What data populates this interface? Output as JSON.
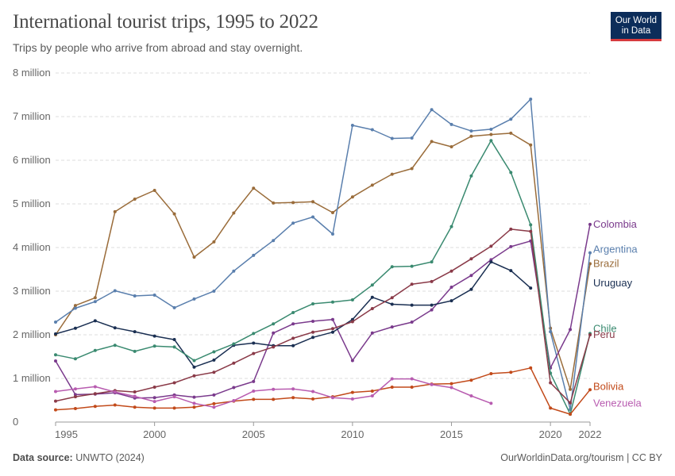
{
  "header": {
    "title": "International tourist trips, 1995 to 2022",
    "subtitle": "Trips by people who arrive from abroad and stay overnight."
  },
  "logo": {
    "line1": "Our World",
    "line2": "in Data"
  },
  "footer": {
    "source_label": "Data source:",
    "source_value": "UNWTO (2024)",
    "right": "OurWorldinData.org/tourism | CC BY"
  },
  "chart_data": {
    "type": "line",
    "title": "International tourist trips, 1995 to 2022",
    "xlim": [
      1995,
      2022
    ],
    "ylim": [
      0,
      8000000
    ],
    "y_ticks": [
      0,
      1000000,
      2000000,
      3000000,
      4000000,
      5000000,
      6000000,
      7000000,
      8000000
    ],
    "y_tick_labels": [
      "0",
      "1 million",
      "2 million",
      "3 million",
      "4 million",
      "5 million",
      "6 million",
      "7 million",
      "8 million"
    ],
    "x_ticks": [
      1995,
      2000,
      2005,
      2010,
      2015,
      2020,
      2022
    ],
    "x_tick_labels": [
      "1995",
      "2000",
      "2005",
      "2010",
      "2015",
      "2020",
      "2022"
    ],
    "grid": "horizontal-dashed",
    "legend": "right-end-labels",
    "series": [
      {
        "name": "Brazil",
        "color": "#9a6c3a",
        "x": [
          1995,
          1996,
          1997,
          1998,
          1999,
          2000,
          2001,
          2002,
          2003,
          2004,
          2005,
          2006,
          2007,
          2008,
          2009,
          2010,
          2011,
          2012,
          2013,
          2014,
          2015,
          2016,
          2017,
          2018,
          2019,
          2020,
          2021,
          2022
        ],
        "y": [
          2000000,
          2670000,
          2850000,
          4820000,
          5110000,
          5310000,
          4770000,
          3780000,
          4130000,
          4790000,
          5360000,
          5020000,
          5030000,
          5050000,
          4800000,
          5160000,
          5430000,
          5680000,
          5810000,
          6430000,
          6310000,
          6550000,
          6590000,
          6620000,
          6350000,
          2150000,
          750000,
          3630000
        ]
      },
      {
        "name": "Argentina",
        "color": "#5a7fad",
        "x": [
          1995,
          1996,
          1997,
          1998,
          1999,
          2000,
          2001,
          2002,
          2003,
          2004,
          2005,
          2006,
          2007,
          2008,
          2009,
          2010,
          2011,
          2012,
          2013,
          2014,
          2015,
          2016,
          2017,
          2018,
          2019,
          2020,
          2021,
          2022
        ],
        "y": [
          2290000,
          2610000,
          2760000,
          3010000,
          2890000,
          2910000,
          2620000,
          2820000,
          3000000,
          3460000,
          3820000,
          4160000,
          4560000,
          4700000,
          4310000,
          6800000,
          6700000,
          6500000,
          6510000,
          7160000,
          6820000,
          6670000,
          6710000,
          6940000,
          7400000,
          2070000,
          290000,
          3880000
        ]
      },
      {
        "name": "Colombia",
        "color": "#7a3a8c",
        "x": [
          1995,
          1996,
          1997,
          1998,
          1999,
          2000,
          2001,
          2002,
          2003,
          2004,
          2005,
          2006,
          2007,
          2008,
          2009,
          2010,
          2011,
          2012,
          2013,
          2014,
          2015,
          2016,
          2017,
          2018,
          2019,
          2020,
          2021,
          2022
        ],
        "y": [
          1400000,
          630000,
          640000,
          670000,
          550000,
          560000,
          620000,
          570000,
          620000,
          790000,
          930000,
          2040000,
          2250000,
          2310000,
          2350000,
          1410000,
          2040000,
          2180000,
          2290000,
          2570000,
          3090000,
          3360000,
          3720000,
          4020000,
          4150000,
          1240000,
          2120000,
          4530000
        ]
      },
      {
        "name": "Uruguay",
        "color": "#1a2f52",
        "x": [
          1995,
          1996,
          1997,
          1998,
          1999,
          2000,
          2001,
          2002,
          2003,
          2004,
          2005,
          2006,
          2007,
          2008,
          2009,
          2010,
          2011,
          2012,
          2013,
          2014,
          2015,
          2016,
          2017,
          2018,
          2019
        ],
        "y": [
          2020000,
          2150000,
          2320000,
          2160000,
          2070000,
          1970000,
          1890000,
          1260000,
          1420000,
          1760000,
          1810000,
          1750000,
          1750000,
          1940000,
          2060000,
          2350000,
          2860000,
          2700000,
          2680000,
          2680000,
          2780000,
          3040000,
          3670000,
          3470000,
          3070000
        ]
      },
      {
        "name": "Chile",
        "color": "#3a8a70",
        "x": [
          1995,
          1996,
          1997,
          1998,
          1999,
          2000,
          2001,
          2002,
          2003,
          2004,
          2005,
          2006,
          2007,
          2008,
          2009,
          2010,
          2011,
          2012,
          2013,
          2014,
          2015,
          2016,
          2017,
          2018,
          2019,
          2020,
          2021,
          2022
        ],
        "y": [
          1540000,
          1450000,
          1640000,
          1760000,
          1620000,
          1740000,
          1720000,
          1410000,
          1610000,
          1790000,
          2030000,
          2250000,
          2510000,
          2710000,
          2750000,
          2800000,
          3140000,
          3560000,
          3570000,
          3670000,
          4480000,
          5640000,
          6450000,
          5720000,
          4520000,
          1120000,
          180000,
          2030000
        ]
      },
      {
        "name": "Peru",
        "color": "#8a3a48",
        "x": [
          1995,
          1996,
          1997,
          1998,
          1999,
          2000,
          2001,
          2002,
          2003,
          2004,
          2005,
          2006,
          2007,
          2008,
          2009,
          2010,
          2011,
          2012,
          2013,
          2014,
          2015,
          2016,
          2017,
          2018,
          2019,
          2020,
          2021,
          2022
        ],
        "y": [
          480000,
          580000,
          650000,
          720000,
          690000,
          800000,
          900000,
          1060000,
          1140000,
          1350000,
          1570000,
          1720000,
          1920000,
          2060000,
          2140000,
          2300000,
          2600000,
          2850000,
          3160000,
          3220000,
          3460000,
          3740000,
          4030000,
          4420000,
          4370000,
          900000,
          440000,
          2000000
        ]
      },
      {
        "name": "Bolivia",
        "color": "#c24a1a",
        "x": [
          1995,
          1996,
          1997,
          1998,
          1999,
          2000,
          2001,
          2002,
          2003,
          2004,
          2005,
          2006,
          2007,
          2008,
          2009,
          2010,
          2011,
          2012,
          2013,
          2014,
          2015,
          2016,
          2017,
          2018,
          2019,
          2020,
          2021,
          2022
        ],
        "y": [
          280000,
          310000,
          360000,
          390000,
          340000,
          320000,
          320000,
          340000,
          420000,
          480000,
          520000,
          520000,
          560000,
          530000,
          580000,
          680000,
          710000,
          800000,
          800000,
          870000,
          880000,
          960000,
          1110000,
          1140000,
          1240000,
          320000,
          180000,
          740000
        ]
      },
      {
        "name": "Venezuela",
        "color": "#b85cb0",
        "x": [
          1995,
          1996,
          1997,
          1998,
          1999,
          2000,
          2001,
          2002,
          2003,
          2004,
          2005,
          2006,
          2007,
          2008,
          2009,
          2010,
          2011,
          2012,
          2013,
          2014,
          2015,
          2016,
          2017
        ],
        "y": [
          700000,
          760000,
          810000,
          690000,
          590000,
          470000,
          580000,
          430000,
          340000,
          490000,
          710000,
          750000,
          760000,
          700000,
          560000,
          530000,
          600000,
          990000,
          990000,
          860000,
          790000,
          600000,
          430000
        ]
      }
    ],
    "end_labels": [
      {
        "name": "Colombia",
        "y": 4530000
      },
      {
        "name": "Argentina",
        "y": 3880000
      },
      {
        "name": "Brazil",
        "y": 3630000
      },
      {
        "name": "Uruguay",
        "y": 3070000
      },
      {
        "name": "Chile",
        "y": 2030000
      },
      {
        "name": "Peru",
        "y": 2000000
      },
      {
        "name": "Bolivia",
        "y": 740000
      },
      {
        "name": "Venezuela",
        "y": 430000
      }
    ]
  }
}
